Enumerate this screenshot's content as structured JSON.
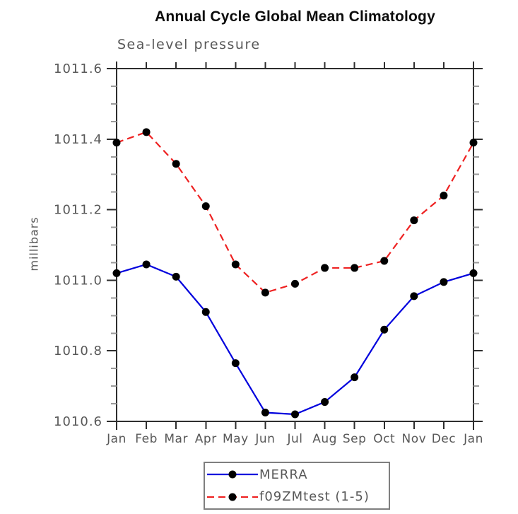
{
  "title": "Annual Cycle Global Mean Climatology",
  "subtitle": "Sea-level pressure",
  "chart_data": {
    "type": "line",
    "title": "Annual Cycle Global Mean Climatology",
    "subtitle": "Sea-level pressure",
    "xlabel": "",
    "ylabel": "millibars",
    "categories": [
      "Jan",
      "Feb",
      "Mar",
      "Apr",
      "May",
      "Jun",
      "Jul",
      "Aug",
      "Sep",
      "Oct",
      "Nov",
      "Dec",
      "Jan"
    ],
    "ylim": [
      1010.6,
      1011.6
    ],
    "yticks": [
      1010.6,
      1010.8,
      1011.0,
      1011.2,
      1011.4,
      1011.6
    ],
    "ytick_step": 0.2,
    "yminor_step": 0.05,
    "grid": false,
    "legend_position": "bottom",
    "series": [
      {
        "name": "MERRA",
        "color": "#0000dd",
        "line_style": "solid",
        "marker": "circle",
        "marker_color": "#000000",
        "values": [
          1011.02,
          1011.045,
          1011.01,
          1010.91,
          1010.765,
          1010.625,
          1010.62,
          1010.655,
          1010.725,
          1010.86,
          1010.955,
          1010.995,
          1011.02
        ]
      },
      {
        "name": "f09ZMtest (1-5)",
        "color": "#ee2222",
        "line_style": "dashed",
        "marker": "circle",
        "marker_color": "#000000",
        "values": [
          1011.39,
          1011.42,
          1011.33,
          1011.21,
          1011.045,
          1010.965,
          1010.99,
          1011.035,
          1011.035,
          1011.055,
          1011.17,
          1011.24,
          1011.39
        ]
      }
    ]
  },
  "legend": {
    "items": [
      {
        "label": "MERRA"
      },
      {
        "label": "f09ZMtest (1-5)"
      }
    ]
  },
  "colors": {
    "axis": "#2e2e2e",
    "minor_tick": "#9a9a9a",
    "label_text": "#585858",
    "series_blue": "#0000dd",
    "series_red": "#ee2222",
    "marker": "#000000"
  }
}
